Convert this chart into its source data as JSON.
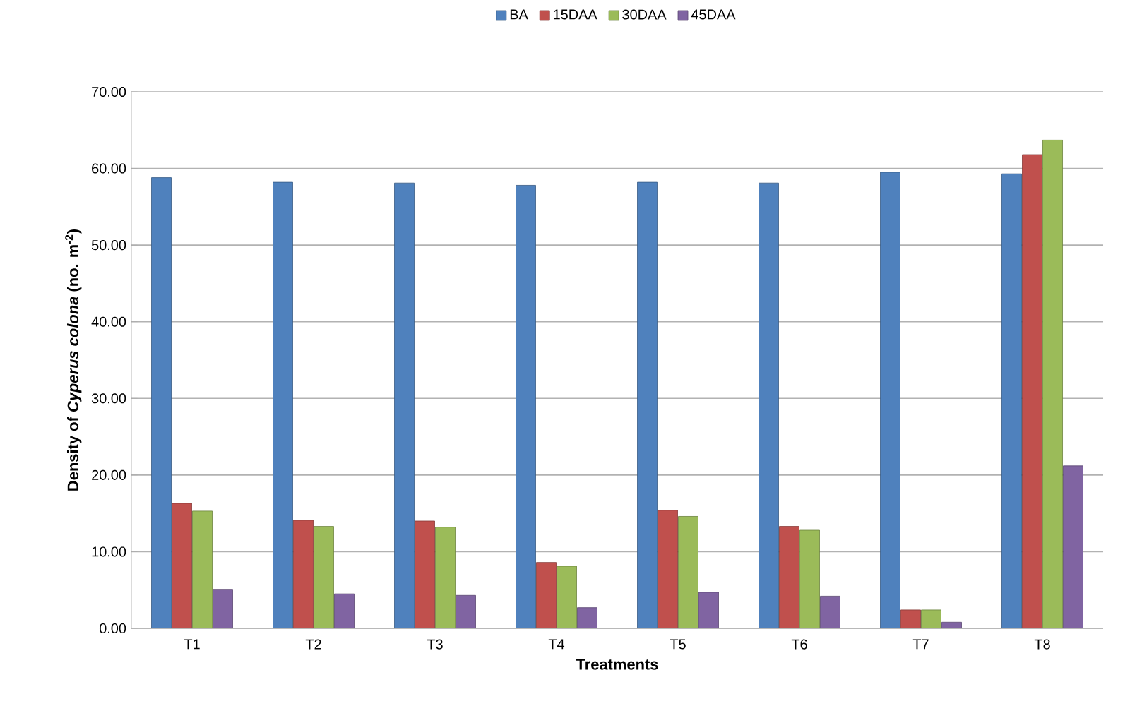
{
  "chart_data": {
    "type": "bar",
    "xlabel": "Treatments",
    "ylabel": "Density of *Cyperus colona* (no. m$^{-2}$)",
    "categories": [
      "T1",
      "T2",
      "T3",
      "T4",
      "T5",
      "T6",
      "T7",
      "T8"
    ],
    "series": [
      {
        "name": "BA",
        "color": "#4f81bd",
        "values": [
          58.8,
          58.2,
          58.1,
          57.8,
          58.2,
          58.1,
          59.5,
          59.3
        ]
      },
      {
        "name": "15DAA",
        "color": "#c0504d",
        "values": [
          16.3,
          14.1,
          14.0,
          8.6,
          15.4,
          13.3,
          2.4,
          61.8
        ]
      },
      {
        "name": "30DAA",
        "color": "#9bbb59",
        "values": [
          15.3,
          13.3,
          13.2,
          8.1,
          14.6,
          12.8,
          2.4,
          63.7
        ]
      },
      {
        "name": "45DAA",
        "color": "#8064a2",
        "values": [
          5.1,
          4.5,
          4.3,
          2.7,
          4.7,
          4.2,
          0.8,
          21.2
        ]
      }
    ],
    "ylim": [
      0,
      70
    ],
    "yticks": [
      {
        "value": 0,
        "label": "0.00"
      },
      {
        "value": 10,
        "label": "10.00"
      },
      {
        "value": 20,
        "label": "20.00"
      },
      {
        "value": 30,
        "label": "30.00"
      },
      {
        "value": 40,
        "label": "40.00"
      },
      {
        "value": 50,
        "label": "50.00"
      },
      {
        "value": 60,
        "label": "60.00"
      },
      {
        "value": 70,
        "label": "70.00"
      }
    ],
    "grid": "y",
    "legend": "top"
  }
}
